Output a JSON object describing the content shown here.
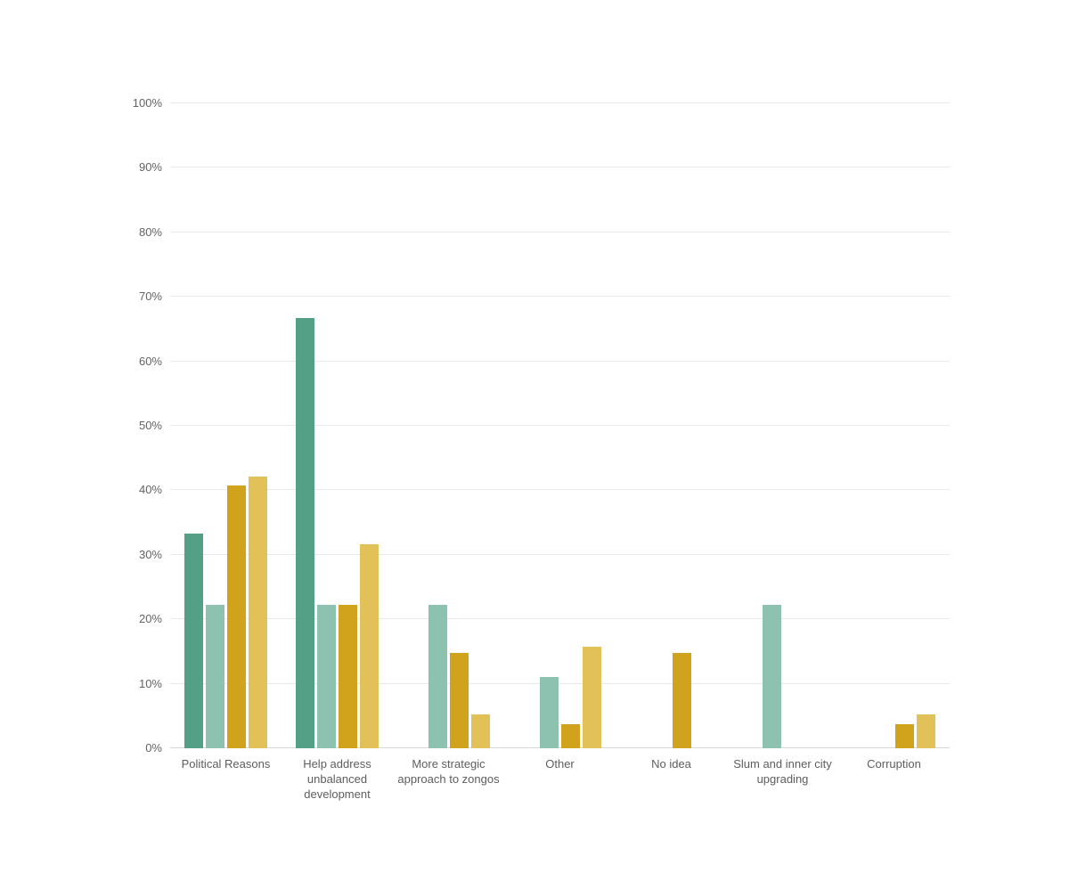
{
  "chart_data": {
    "type": "bar",
    "title": "",
    "xlabel": "",
    "ylabel": "",
    "ylim": [
      0,
      100
    ],
    "grid": true,
    "legend_position": "none",
    "y_tick_labels": [
      "0%",
      "10%",
      "20%",
      "30%",
      "40%",
      "50%",
      "60%",
      "70%",
      "80%",
      "90%",
      "100%"
    ],
    "categories": [
      "Political Reasons",
      "Help address unbalanced development",
      "More strategic approach to zongos",
      "Other",
      "No idea",
      "Slum and inner city upgrading",
      "Corruption"
    ],
    "series": [
      {
        "name": "series-1",
        "color": "#54a086",
        "values": [
          33.3,
          66.7,
          0,
          0,
          0,
          0,
          0
        ]
      },
      {
        "name": "series-2",
        "color": "#8ec2b0",
        "values": [
          22.2,
          22.2,
          22.2,
          11.1,
          0,
          22.2,
          0
        ]
      },
      {
        "name": "series-3",
        "color": "#d1a21c",
        "values": [
          40.7,
          22.2,
          14.8,
          3.7,
          14.8,
          0,
          3.7
        ]
      },
      {
        "name": "series-4",
        "color": "#e2c158",
        "values": [
          42.1,
          31.6,
          5.3,
          15.8,
          0,
          0,
          5.3
        ]
      }
    ],
    "colors": {
      "gridline": "#e9e9e9",
      "axis_line": "#d6d6d6",
      "tick_label": "#636363",
      "category_label": "#5d5d5d",
      "background": "#ffffff"
    }
  }
}
